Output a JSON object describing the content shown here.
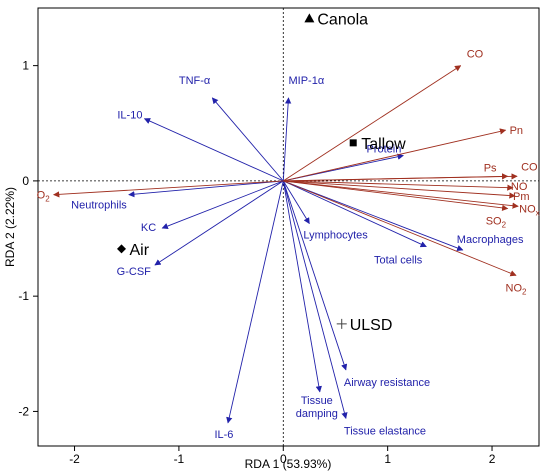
{
  "chart_data": {
    "type": "scatter",
    "subtype": "rda-biplot",
    "xlabel": "RDA 1 (53.93%)",
    "ylabel": "RDA 2 (2.22%)",
    "xlim": [
      -2.35,
      2.45
    ],
    "ylim": [
      -2.3,
      1.5
    ],
    "xticks": [
      -2,
      -1,
      0,
      1,
      2
    ],
    "yticks": [
      -2,
      -1,
      0,
      1
    ],
    "xtick_labels": [
      "-2",
      "-1",
      "0",
      "1",
      "2"
    ],
    "ytick_labels": [
      "-2",
      "-1",
      "0",
      "1"
    ],
    "zero_lines": "dotted",
    "grid": false,
    "colors": {
      "response": "#2222aa",
      "environment": "#a03020",
      "origin": "#000000"
    },
    "sites": [
      {
        "name": "Canola",
        "x": 0.25,
        "y": 1.41,
        "marker": "triangle"
      },
      {
        "name": "Tallow",
        "x": 0.67,
        "y": 0.33,
        "marker": "square"
      },
      {
        "name": "Air",
        "x": -1.55,
        "y": -0.59,
        "marker": "diamond"
      },
      {
        "name": "ULSD",
        "x": 0.56,
        "y": -1.24,
        "marker": "plus"
      }
    ],
    "response_vectors": [
      {
        "name": "TNF-α",
        "x": -0.68,
        "y": 0.72
      },
      {
        "name": "MIP-1α",
        "x": 0.05,
        "y": 0.72
      },
      {
        "name": "IL-10",
        "x": -1.33,
        "y": 0.54
      },
      {
        "name": "Neutrophils",
        "x": -1.48,
        "y": -0.12
      },
      {
        "name": "KC",
        "x": -1.16,
        "y": -0.41
      },
      {
        "name": "G-CSF",
        "x": -1.23,
        "y": -0.73
      },
      {
        "name": "IL-6",
        "x": -0.53,
        "y": -2.1
      },
      {
        "name": "Protein",
        "x": 1.15,
        "y": 0.22
      },
      {
        "name": "Lymphocytes",
        "x": 0.25,
        "y": -0.37
      },
      {
        "name": "Total cells",
        "x": 1.37,
        "y": -0.57
      },
      {
        "name": "Macrophages",
        "x": 1.72,
        "y": -0.6
      },
      {
        "name": "Airway resistance",
        "x": 0.6,
        "y": -1.64
      },
      {
        "name": "Tissue damping",
        "x": 0.35,
        "y": -1.83
      },
      {
        "name": "Tissue elastance",
        "x": 0.6,
        "y": -2.06
      }
    ],
    "environment_vectors": [
      {
        "name": "CO",
        "label": "CO",
        "x": 1.7,
        "y": 1.0
      },
      {
        "name": "Pn",
        "label": "Pn",
        "x": 2.13,
        "y": 0.44
      },
      {
        "name": "Ps",
        "label": "Ps",
        "x": 2.15,
        "y": 0.04
      },
      {
        "name": "CO (2)",
        "label": "CO",
        "x": 2.24,
        "y": 0.04
      },
      {
        "name": "NO",
        "label": "NO",
        "x": 2.2,
        "y": -0.06
      },
      {
        "name": "Pm",
        "label": "Pm",
        "x": 2.22,
        "y": -0.13
      },
      {
        "name": "NOx",
        "label": "NO",
        "sub": "x",
        "x": 2.25,
        "y": -0.22
      },
      {
        "name": "SO2",
        "label": "SO",
        "sub": "2",
        "x": 2.15,
        "y": -0.24
      },
      {
        "name": "NO2",
        "label": "NO",
        "sub": "2",
        "x": 2.23,
        "y": -0.82
      },
      {
        "name": "O2",
        "label": "O",
        "sub": "2",
        "x": -2.2,
        "y": -0.12
      }
    ]
  }
}
